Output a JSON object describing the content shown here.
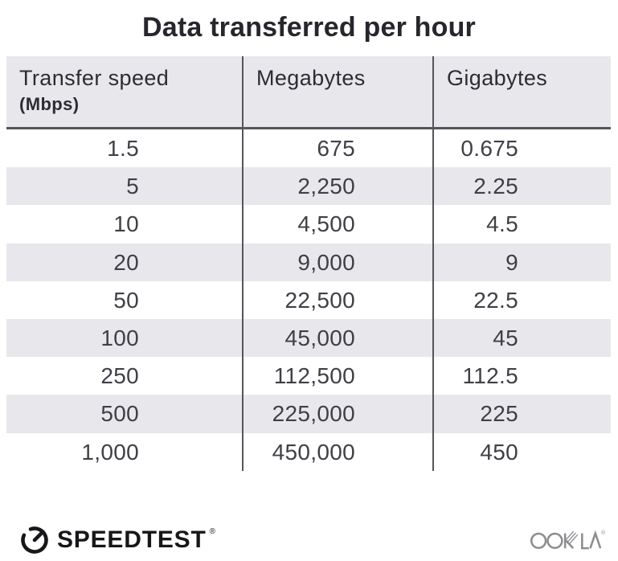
{
  "title": "Data transferred per hour",
  "table": {
    "columns": [
      {
        "label": "Transfer speed",
        "sublabel": "(Mbps)"
      },
      {
        "label": "Megabytes",
        "sublabel": ""
      },
      {
        "label": "Gigabytes",
        "sublabel": ""
      }
    ],
    "rows": [
      {
        "speed": "1.5",
        "megabytes": "675",
        "gigabytes": "0.675"
      },
      {
        "speed": "5",
        "megabytes": "2,250",
        "gigabytes": "2.25"
      },
      {
        "speed": "10",
        "megabytes": "4,500",
        "gigabytes": "4.5"
      },
      {
        "speed": "20",
        "megabytes": "9,000",
        "gigabytes": "9"
      },
      {
        "speed": "50",
        "megabytes": "22,500",
        "gigabytes": "22.5"
      },
      {
        "speed": "100",
        "megabytes": "45,000",
        "gigabytes": "45"
      },
      {
        "speed": "250",
        "megabytes": "112,500",
        "gigabytes": "112.5"
      },
      {
        "speed": "500",
        "megabytes": "225,000",
        "gigabytes": "225"
      },
      {
        "speed": "1,000",
        "megabytes": "450,000",
        "gigabytes": "450"
      }
    ]
  },
  "chart_data": {
    "type": "table",
    "title": "Data transferred per hour",
    "columns": [
      "Transfer speed (Mbps)",
      "Megabytes",
      "Gigabytes"
    ],
    "rows": [
      [
        1.5,
        675,
        0.675
      ],
      [
        5,
        2250,
        2.25
      ],
      [
        10,
        4500,
        4.5
      ],
      [
        20,
        9000,
        9
      ],
      [
        50,
        22500,
        22.5
      ],
      [
        100,
        45000,
        45
      ],
      [
        250,
        112500,
        112.5
      ],
      [
        500,
        225000,
        225
      ],
      [
        1000,
        450000,
        450
      ]
    ],
    "layout_hints": {
      "zebra_striping": true,
      "striped_rows": "even rows shaded",
      "number_alignment": "right"
    }
  },
  "footer": {
    "speedtest_label": "SPEEDTEST",
    "speedtest_trademark": "®",
    "ookla_label": "OOKLA",
    "ookla_trademark": "®"
  },
  "colors": {
    "background": "#ffffff",
    "stripe_and_header_bg": "#e8e8ec",
    "divider_line": "#55555c",
    "title_text": "#26262c",
    "header_text": "#2c2c33",
    "number_text": "#3f3f46",
    "speedtest_black": "#17171a",
    "ookla_gray": "#8d8d92"
  }
}
